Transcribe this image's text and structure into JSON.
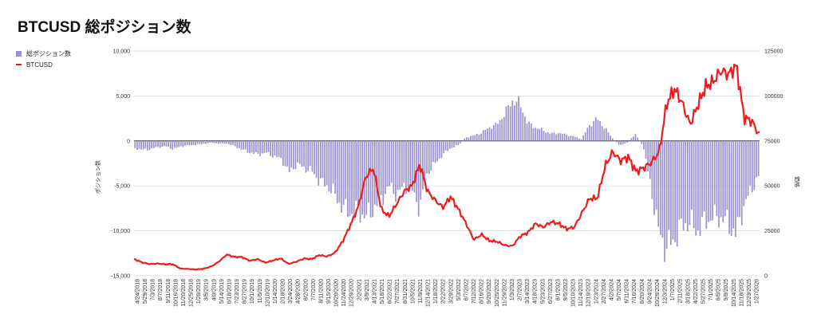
{
  "title": "BTCUSD  総ポジション数",
  "legend": [
    {
      "label": "総ポジション数",
      "color": "#9c91cf",
      "kind": "bar"
    },
    {
      "label": "BTCUSD",
      "color": "#ee1c1c",
      "kind": "line"
    }
  ],
  "chart_data": {
    "type": "bar+line",
    "title": "BTCUSD  総ポジション数",
    "ylabel_left": "ポジション数",
    "ylabel_right": "価格",
    "left_axis": {
      "ticks": [
        10000,
        5000,
        0,
        -5000,
        -10000,
        -15000
      ],
      "tick_labels": [
        "10,000",
        "5,000",
        "0",
        "-5,000",
        "-10,000",
        "-15,000"
      ],
      "range": [
        -15000,
        10000
      ]
    },
    "right_axis": {
      "ticks": [
        125000,
        100000,
        75000,
        50000,
        25000,
        0
      ],
      "tick_labels": [
        "125000",
        "100000",
        "75000",
        "50000",
        "25000",
        "0"
      ],
      "range": [
        0,
        125000
      ]
    },
    "x_labels": [
      "4/24/2018",
      "5/29/2018",
      "7/3/2018",
      "8/7/2018",
      "9/11/2018",
      "10/16/2018",
      "11/20/2018",
      "12/25/2018",
      "1/29/2019",
      "3/5/2019",
      "4/9/2019",
      "5/14/2019",
      "6/18/2019",
      "7/23/2019",
      "8/27/2019",
      "10/1/2019",
      "11/5/2019",
      "12/10/2019",
      "1/14/2020",
      "2/18/2020",
      "3/24/2020",
      "4/28/2020",
      "6/2/2020",
      "7/7/2020",
      "8/11/2020",
      "9/15/2020",
      "10/20/2020",
      "11/24/2020",
      "12/29/2020",
      "2/2/2021",
      "3/9/2021",
      "4/13/2021",
      "5/18/2021",
      "6/22/2021",
      "7/27/2021",
      "8/31/2021",
      "10/5/2021",
      "11/9/2021",
      "12/14/2021",
      "1/18/2022",
      "2/22/2022",
      "3/29/2022",
      "5/3/2022",
      "6/7/2022",
      "7/12/2022",
      "8/16/2022",
      "9/20/2022",
      "10/25/2022",
      "11/29/2022",
      "1/3/2023",
      "2/7/2023",
      "3/14/2023",
      "4/18/2023",
      "5/23/2023",
      "6/27/2023",
      "8/1/2023",
      "9/5/2023",
      "10/10/2023",
      "11/14/2023",
      "12/19/2023",
      "1/23/2024",
      "2/27/2024",
      "4/2/2024",
      "5/7/2024",
      "6/11/2024",
      "7/16/2024",
      "8/20/2024",
      "9/24/2024",
      "10/29/2024",
      "12/3/2024",
      "1/7/2025",
      "2/11/2025",
      "3/18/2025",
      "4/22/2025",
      "5/27/2025",
      "7/1/2025",
      "8/5/2025",
      "9/9/2025",
      "10/14/2025",
      "11/18/2025",
      "12/23/2025",
      "1/27/2026"
    ],
    "series": [
      {
        "name": "総ポジション数",
        "type": "bar",
        "color": "#9c91cf",
        "values": [
          -800,
          -1000,
          -900,
          -700,
          -600,
          -900,
          -600,
          -500,
          -400,
          -300,
          -200,
          -300,
          -300,
          -600,
          -1000,
          -1300,
          -1500,
          -1300,
          -1700,
          -2000,
          -3500,
          -2600,
          -3000,
          -3400,
          -4500,
          -5000,
          -6000,
          -7500,
          -8000,
          -7800,
          -8500,
          -7500,
          -6500,
          -5000,
          -6000,
          -5000,
          -5500,
          -7500,
          -3500,
          -2500,
          -1500,
          -800,
          -500,
          400,
          600,
          900,
          1500,
          1800,
          3000,
          4500,
          4200,
          2000,
          1500,
          1200,
          800,
          900,
          700,
          500,
          200,
          1700,
          2500,
          1500,
          300,
          -500,
          -200,
          800,
          -500,
          -5000,
          -10000,
          -12000,
          -11000,
          -9500,
          -9000,
          -10000,
          -9000,
          -8500,
          -8500,
          -9000,
          -10500,
          -7500,
          -5500,
          -4000
        ]
      },
      {
        "name": "BTCUSD",
        "type": "line",
        "color": "#ee1c1c",
        "values": [
          9300,
          7500,
          6500,
          6800,
          6400,
          6500,
          4000,
          3800,
          3500,
          3900,
          5200,
          7900,
          11800,
          10500,
          10400,
          8300,
          9300,
          7300,
          8500,
          9700,
          6600,
          7800,
          9600,
          9300,
          11500,
          10700,
          12800,
          19000,
          28000,
          38000,
          55000,
          60000,
          37000,
          33000,
          40000,
          47000,
          50000,
          62000,
          47000,
          42000,
          38000,
          44000,
          37000,
          29000,
          20000,
          23000,
          19500,
          19000,
          17000,
          16500,
          22000,
          24000,
          29000,
          27000,
          30000,
          29000,
          26000,
          27000,
          35000,
          43000,
          43000,
          61000,
          69000,
          64000,
          66000,
          58000,
          60000,
          63000,
          69000,
          96000,
          104000,
          96000,
          84000,
          95000,
          105000,
          108000,
          114000,
          112000,
          117000,
          88000,
          86000,
          78000
        ]
      }
    ],
    "grid": "horizontal",
    "legend_position": "top-left"
  }
}
